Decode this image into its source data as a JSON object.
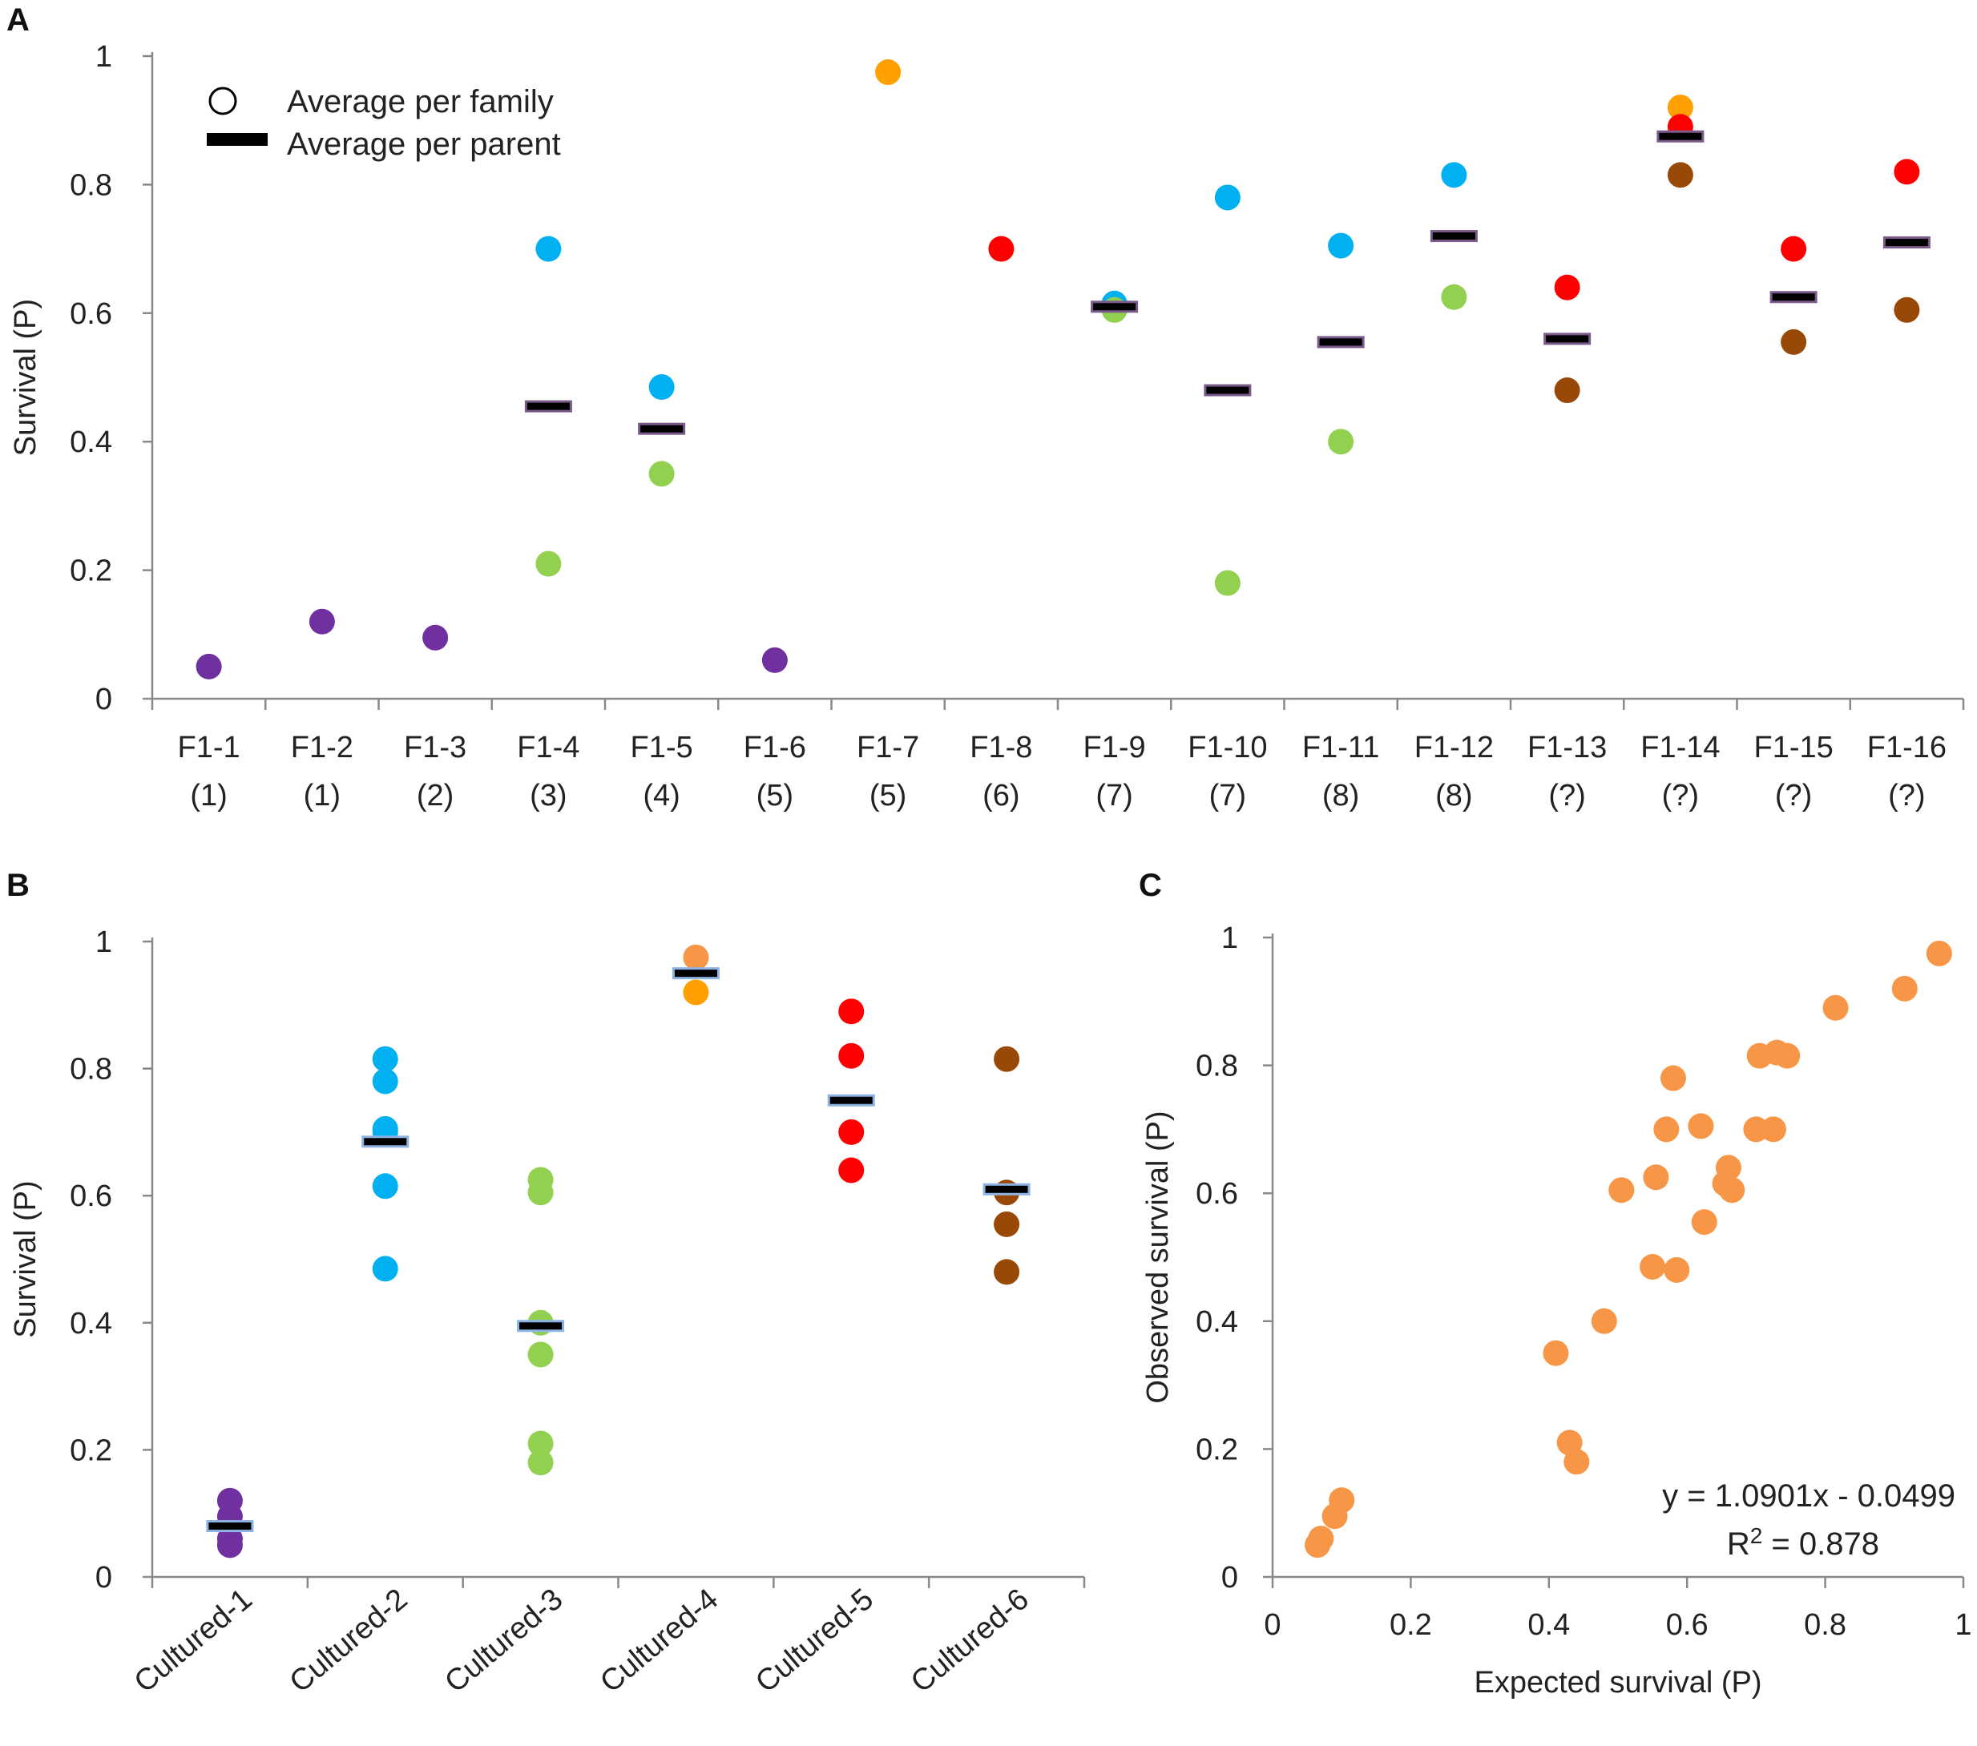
{
  "colors": {
    "purple": "#7030a0",
    "blue": "#00b0f0",
    "green": "#92d050",
    "orange": "#ffa000",
    "light_orange": "#f79646",
    "red": "#ff0000",
    "brown": "#984807",
    "mean_bar": "#000000",
    "mean_bar_outline_a": "#7a5a8a",
    "mean_bar_outline_b": "#8db3e2"
  },
  "chart_data": [
    {
      "panel": "A",
      "type": "scatter",
      "title": "",
      "xlabel": "",
      "ylabel": "Survival (P)",
      "ylim": [
        0,
        1
      ],
      "yticks": [
        "0",
        "0.2",
        "0.4",
        "0.6",
        "0.8",
        "1"
      ],
      "categories": [
        {
          "name": "F1-1",
          "sub": "(1)"
        },
        {
          "name": "F1-2",
          "sub": "(1)"
        },
        {
          "name": "F1-3",
          "sub": "(2)"
        },
        {
          "name": "F1-4",
          "sub": "(3)"
        },
        {
          "name": "F1-5",
          "sub": "(4)"
        },
        {
          "name": "F1-6",
          "sub": "(5)"
        },
        {
          "name": "F1-7",
          "sub": "(5)"
        },
        {
          "name": "F1-8",
          "sub": "(6)"
        },
        {
          "name": "F1-9",
          "sub": "(7)"
        },
        {
          "name": "F1-10",
          "sub": "(7)"
        },
        {
          "name": "F1-11",
          "sub": "(8)"
        },
        {
          "name": "F1-12",
          "sub": "(8)"
        },
        {
          "name": "F1-13",
          "sub": "(?)"
        },
        {
          "name": "F1-14",
          "sub": "(?)"
        },
        {
          "name": "F1-15",
          "sub": "(?)"
        },
        {
          "name": "F1-16",
          "sub": "(?)"
        }
      ],
      "legend": {
        "position": "top-left",
        "family_label": "Average per family",
        "parent_label": "Average per parent"
      },
      "points": [
        {
          "cat": 0,
          "y": 0.05,
          "color": "purple"
        },
        {
          "cat": 1,
          "y": 0.12,
          "color": "purple"
        },
        {
          "cat": 2,
          "y": 0.095,
          "color": "purple"
        },
        {
          "cat": 3,
          "y": 0.7,
          "color": "blue"
        },
        {
          "cat": 3,
          "y": 0.21,
          "color": "green"
        },
        {
          "cat": 4,
          "y": 0.485,
          "color": "blue"
        },
        {
          "cat": 4,
          "y": 0.35,
          "color": "green"
        },
        {
          "cat": 5,
          "y": 0.06,
          "color": "purple"
        },
        {
          "cat": 6,
          "y": 0.975,
          "color": "orange"
        },
        {
          "cat": 7,
          "y": 0.7,
          "color": "red"
        },
        {
          "cat": 8,
          "y": 0.615,
          "color": "blue"
        },
        {
          "cat": 8,
          "y": 0.605,
          "color": "green"
        },
        {
          "cat": 9,
          "y": 0.78,
          "color": "blue"
        },
        {
          "cat": 9,
          "y": 0.18,
          "color": "green"
        },
        {
          "cat": 10,
          "y": 0.705,
          "color": "blue"
        },
        {
          "cat": 10,
          "y": 0.4,
          "color": "green"
        },
        {
          "cat": 11,
          "y": 0.815,
          "color": "blue"
        },
        {
          "cat": 11,
          "y": 0.625,
          "color": "green"
        },
        {
          "cat": 12,
          "y": 0.64,
          "color": "red"
        },
        {
          "cat": 12,
          "y": 0.48,
          "color": "brown"
        },
        {
          "cat": 13,
          "y": 0.92,
          "color": "orange"
        },
        {
          "cat": 13,
          "y": 0.89,
          "color": "red"
        },
        {
          "cat": 13,
          "y": 0.815,
          "color": "brown"
        },
        {
          "cat": 14,
          "y": 0.7,
          "color": "red"
        },
        {
          "cat": 14,
          "y": 0.555,
          "color": "brown"
        },
        {
          "cat": 15,
          "y": 0.82,
          "color": "red"
        },
        {
          "cat": 15,
          "y": 0.605,
          "color": "brown"
        }
      ],
      "means": [
        {
          "cat": 3,
          "y": 0.455
        },
        {
          "cat": 4,
          "y": 0.42
        },
        {
          "cat": 8,
          "y": 0.61
        },
        {
          "cat": 9,
          "y": 0.48
        },
        {
          "cat": 10,
          "y": 0.555
        },
        {
          "cat": 11,
          "y": 0.72
        },
        {
          "cat": 12,
          "y": 0.56
        },
        {
          "cat": 13,
          "y": 0.875
        },
        {
          "cat": 14,
          "y": 0.625
        },
        {
          "cat": 15,
          "y": 0.71
        }
      ]
    },
    {
      "panel": "B",
      "type": "scatter",
      "title": "",
      "xlabel": "",
      "ylabel": "Survival (P)",
      "ylim": [
        0,
        1
      ],
      "yticks": [
        "0",
        "0.2",
        "0.4",
        "0.6",
        "0.8",
        "1"
      ],
      "categories": [
        {
          "name": "Cultured-1"
        },
        {
          "name": "Cultured-2"
        },
        {
          "name": "Cultured-3"
        },
        {
          "name": "Cultured-4"
        },
        {
          "name": "Cultured-5"
        },
        {
          "name": "Cultured-6"
        }
      ],
      "points": [
        {
          "cat": 0,
          "y": 0.12,
          "color": "purple"
        },
        {
          "cat": 0,
          "y": 0.095,
          "color": "purple"
        },
        {
          "cat": 0,
          "y": 0.06,
          "color": "purple"
        },
        {
          "cat": 0,
          "y": 0.05,
          "color": "purple"
        },
        {
          "cat": 1,
          "y": 0.815,
          "color": "blue"
        },
        {
          "cat": 1,
          "y": 0.78,
          "color": "blue"
        },
        {
          "cat": 1,
          "y": 0.705,
          "color": "blue"
        },
        {
          "cat": 1,
          "y": 0.7,
          "color": "blue"
        },
        {
          "cat": 1,
          "y": 0.615,
          "color": "blue"
        },
        {
          "cat": 1,
          "y": 0.485,
          "color": "blue"
        },
        {
          "cat": 2,
          "y": 0.625,
          "color": "green"
        },
        {
          "cat": 2,
          "y": 0.605,
          "color": "green"
        },
        {
          "cat": 2,
          "y": 0.4,
          "color": "green"
        },
        {
          "cat": 2,
          "y": 0.35,
          "color": "green"
        },
        {
          "cat": 2,
          "y": 0.21,
          "color": "green"
        },
        {
          "cat": 2,
          "y": 0.18,
          "color": "green"
        },
        {
          "cat": 3,
          "y": 0.975,
          "color": "light_orange"
        },
        {
          "cat": 3,
          "y": 0.92,
          "color": "orange"
        },
        {
          "cat": 4,
          "y": 0.89,
          "color": "red"
        },
        {
          "cat": 4,
          "y": 0.82,
          "color": "red"
        },
        {
          "cat": 4,
          "y": 0.7,
          "color": "red"
        },
        {
          "cat": 4,
          "y": 0.64,
          "color": "red"
        },
        {
          "cat": 5,
          "y": 0.815,
          "color": "brown"
        },
        {
          "cat": 5,
          "y": 0.605,
          "color": "brown"
        },
        {
          "cat": 5,
          "y": 0.555,
          "color": "brown"
        },
        {
          "cat": 5,
          "y": 0.48,
          "color": "brown"
        }
      ],
      "means": [
        {
          "cat": 0,
          "y": 0.08
        },
        {
          "cat": 1,
          "y": 0.685
        },
        {
          "cat": 2,
          "y": 0.395
        },
        {
          "cat": 3,
          "y": 0.95
        },
        {
          "cat": 4,
          "y": 0.75
        },
        {
          "cat": 5,
          "y": 0.61
        }
      ]
    },
    {
      "panel": "C",
      "type": "scatter",
      "title": "",
      "xlabel": "Expected survival (P)",
      "ylabel": "Observed survival (P)",
      "xlim": [
        0,
        1
      ],
      "ylim": [
        0,
        1
      ],
      "xticks": [
        "0",
        "0.2",
        "0.4",
        "0.6",
        "0.8",
        "1"
      ],
      "yticks": [
        "0",
        "0.2",
        "0.4",
        "0.6",
        "0.8",
        "1"
      ],
      "regression": {
        "equation": "y = 1.0901x - 0.0499",
        "r2_prefix": "R",
        "r2_sup": "2",
        "r2_suffix": " = 0.878"
      },
      "x": [
        0.065,
        0.07,
        0.09,
        0.1,
        0.41,
        0.43,
        0.44,
        0.48,
        0.505,
        0.55,
        0.555,
        0.57,
        0.58,
        0.585,
        0.62,
        0.625,
        0.655,
        0.66,
        0.665,
        0.7,
        0.705,
        0.725,
        0.73,
        0.745,
        0.815,
        0.915,
        0.965
      ],
      "y": [
        0.05,
        0.06,
        0.095,
        0.12,
        0.35,
        0.21,
        0.18,
        0.4,
        0.605,
        0.485,
        0.625,
        0.7,
        0.78,
        0.48,
        0.705,
        0.555,
        0.615,
        0.64,
        0.605,
        0.7,
        0.815,
        0.7,
        0.82,
        0.815,
        0.89,
        0.92,
        0.975
      ]
    }
  ]
}
